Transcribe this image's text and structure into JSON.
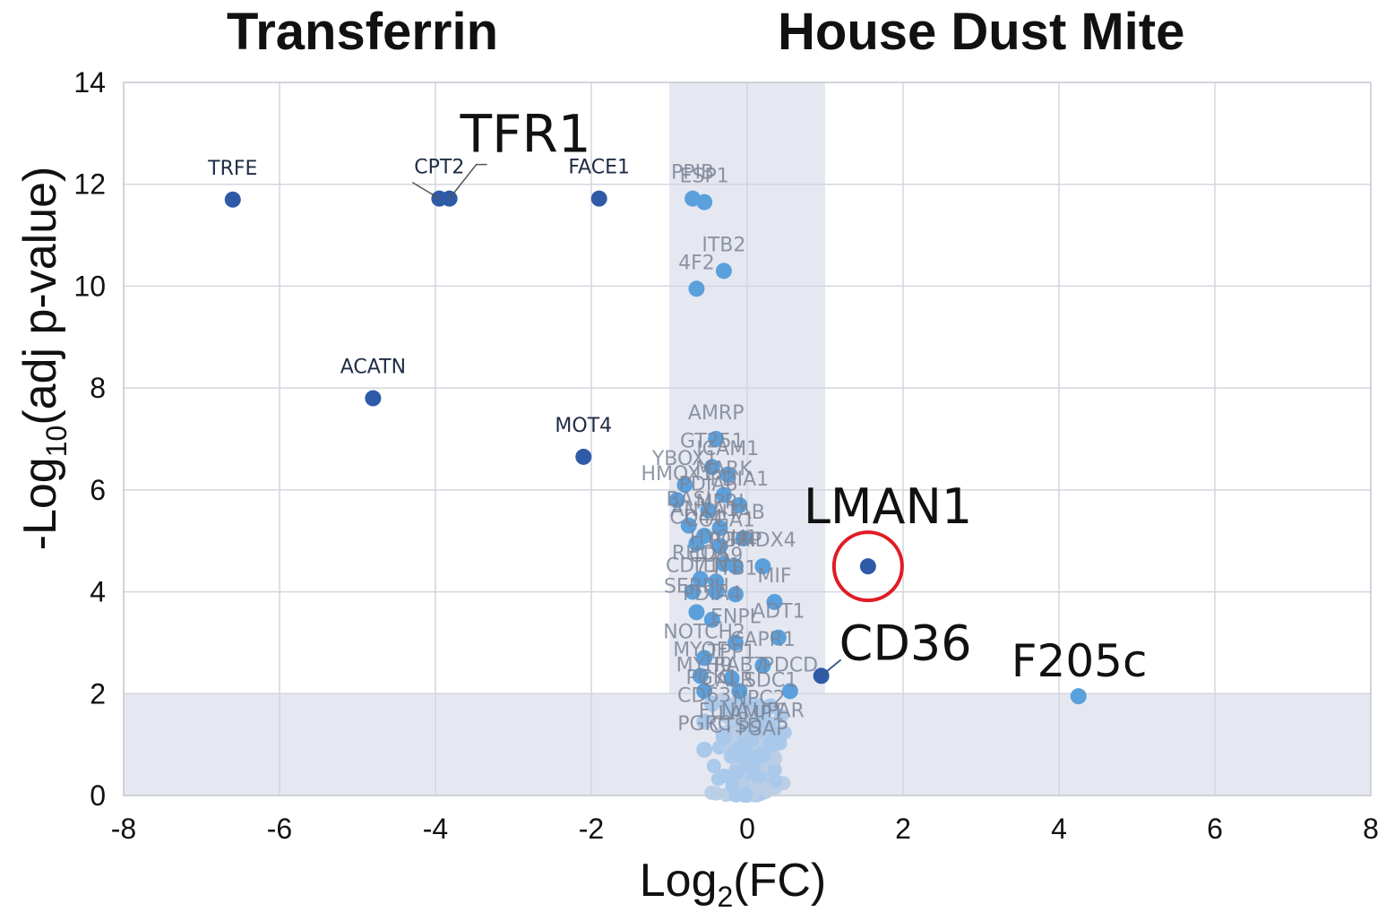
{
  "panel_titles": {
    "left": "Transferrin",
    "right": "House Dust Mite"
  },
  "chart_data": {
    "type": "scatter",
    "title": "",
    "xlabel": "Log2(FC)",
    "ylabel": "-Log10(adj p-value)",
    "xlim": [
      -8,
      8
    ],
    "ylim": [
      0,
      14
    ],
    "x_ticks": [
      -8,
      -6,
      -4,
      -2,
      0,
      2,
      4,
      6,
      8
    ],
    "y_ticks": [
      0,
      2,
      4,
      6,
      8,
      10,
      12,
      14
    ],
    "grid": true,
    "shaded_regions": [
      {
        "axis": "x",
        "from": -1,
        "to": 1,
        "meaning": "fold-change threshold"
      },
      {
        "axis": "y",
        "from": 0,
        "to": 2,
        "meaning": "significance threshold"
      }
    ],
    "colors": {
      "significant": "#2f5aa8",
      "threshold_region": "#5aa0dc",
      "background": "#a9c8ea",
      "highlight_circle": "#e01c24",
      "shade": "#e6e8f1",
      "grid": "#d3d6de"
    },
    "highlighted": "LMAN1",
    "points": [
      {
        "label": "TRFE",
        "x": -6.6,
        "y": 11.7,
        "group": "significant"
      },
      {
        "label": "CPT2",
        "x": -3.95,
        "y": 11.72,
        "group": "significant"
      },
      {
        "label": "TFR1",
        "x": -3.82,
        "y": 11.72,
        "group": "significant"
      },
      {
        "label": "FACE1",
        "x": -1.9,
        "y": 11.72,
        "group": "significant"
      },
      {
        "label": "PPIB",
        "x": -0.7,
        "y": 11.72,
        "group": "threshold"
      },
      {
        "label": "ESP1",
        "x": -0.55,
        "y": 11.65,
        "group": "threshold"
      },
      {
        "label": "ITB2",
        "x": -0.3,
        "y": 10.3,
        "group": "threshold"
      },
      {
        "label": "4F2",
        "x": -0.65,
        "y": 9.95,
        "group": "threshold"
      },
      {
        "label": "ACATN",
        "x": -4.8,
        "y": 7.8,
        "group": "significant"
      },
      {
        "label": "MOT4",
        "x": -2.1,
        "y": 6.65,
        "group": "significant"
      },
      {
        "label": "AMRP",
        "x": -0.4,
        "y": 7.0,
        "group": "threshold"
      },
      {
        "label": "GT251",
        "x": -0.45,
        "y": 6.45,
        "group": "threshold"
      },
      {
        "label": "ICAM1",
        "x": -0.25,
        "y": 6.3,
        "group": "threshold"
      },
      {
        "label": "YBOX1",
        "x": -0.8,
        "y": 6.1,
        "group": "threshold"
      },
      {
        "label": "MARK",
        "x": -0.3,
        "y": 5.9,
        "group": "threshold"
      },
      {
        "label": "HMOX1",
        "x": -0.9,
        "y": 5.8,
        "group": "threshold"
      },
      {
        "label": "PDIA1",
        "x": -0.1,
        "y": 5.7,
        "group": "threshold"
      },
      {
        "label": "PDIA6",
        "x": -0.5,
        "y": 5.6,
        "group": "threshold"
      },
      {
        "label": "BASI",
        "x": -0.75,
        "y": 5.3,
        "group": "threshold"
      },
      {
        "label": "MPRI",
        "x": -0.35,
        "y": 5.25,
        "group": "threshold"
      },
      {
        "label": "ANXA1",
        "x": -0.55,
        "y": 5.1,
        "group": "threshold"
      },
      {
        "label": "ITAB",
        "x": -0.05,
        "y": 5.05,
        "group": "threshold"
      },
      {
        "label": "CD44",
        "x": -0.65,
        "y": 4.95,
        "group": "threshold"
      },
      {
        "label": "COGA1",
        "x": -0.35,
        "y": 4.9,
        "group": "threshold"
      },
      {
        "label": "HYOU1",
        "x": -0.3,
        "y": 4.55,
        "group": "threshold"
      },
      {
        "label": "PGRP",
        "x": -0.15,
        "y": 4.5,
        "group": "threshold"
      },
      {
        "label": "PRDX4",
        "x": 0.2,
        "y": 4.5,
        "group": "threshold"
      },
      {
        "label": "RHOA",
        "x": -0.6,
        "y": 4.25,
        "group": "threshold"
      },
      {
        "label": "CD59",
        "x": -0.4,
        "y": 4.2,
        "group": "threshold"
      },
      {
        "label": "CD71",
        "x": -0.7,
        "y": 4.0,
        "group": "threshold"
      },
      {
        "label": "TLN1",
        "x": -0.4,
        "y": 4.0,
        "group": "threshold"
      },
      {
        "label": "ITB1",
        "x": -0.15,
        "y": 3.95,
        "group": "threshold"
      },
      {
        "label": "MIF",
        "x": 0.35,
        "y": 3.8,
        "group": "threshold"
      },
      {
        "label": "SERPH",
        "x": -0.65,
        "y": 3.6,
        "group": "threshold"
      },
      {
        "label": "PDIA4",
        "x": -0.45,
        "y": 3.45,
        "group": "threshold"
      },
      {
        "label": "ADT1",
        "x": 0.4,
        "y": 3.1,
        "group": "threshold"
      },
      {
        "label": "ENPL",
        "x": -0.15,
        "y": 3.0,
        "group": "threshold"
      },
      {
        "label": "NOTCH2",
        "x": -0.55,
        "y": 2.7,
        "group": "threshold"
      },
      {
        "label": "CAPR1",
        "x": 0.2,
        "y": 2.55,
        "group": "threshold"
      },
      {
        "label": "MYOF",
        "x": -0.6,
        "y": 2.35,
        "group": "threshold"
      },
      {
        "label": "TPP1",
        "x": -0.2,
        "y": 2.3,
        "group": "threshold"
      },
      {
        "label": "MYH9",
        "x": -0.55,
        "y": 2.05,
        "group": "threshold"
      },
      {
        "label": "RAB7",
        "x": -0.1,
        "y": 2.05,
        "group": "threshold"
      },
      {
        "label": "PDCD",
        "x": 0.55,
        "y": 2.05,
        "group": "threshold"
      },
      {
        "label": "CD36",
        "x": 0.95,
        "y": 2.35,
        "group": "significant"
      },
      {
        "label": "LMAN1",
        "x": 1.55,
        "y": 4.5,
        "group": "significant"
      },
      {
        "label": "F205c",
        "x": 4.25,
        "y": 1.95,
        "group": "threshold"
      },
      {
        "label": "PGK1",
        "x": -0.45,
        "y": 1.8,
        "group": "background"
      },
      {
        "label": "CALR",
        "x": -0.25,
        "y": 1.75,
        "group": "background"
      },
      {
        "label": "SDC1",
        "x": 0.3,
        "y": 1.75,
        "group": "background"
      },
      {
        "label": "CD63",
        "x": -0.55,
        "y": 1.45,
        "group": "background"
      },
      {
        "label": "NPC2",
        "x": 0.15,
        "y": 1.4,
        "group": "background"
      },
      {
        "label": "FLNA",
        "x": -0.3,
        "y": 1.15,
        "group": "background"
      },
      {
        "label": "LAMP1",
        "x": 0.05,
        "y": 1.1,
        "group": "background"
      },
      {
        "label": "UPAR",
        "x": 0.4,
        "y": 1.15,
        "group": "background"
      },
      {
        "label": "PGRC",
        "x": -0.55,
        "y": 0.9,
        "group": "background"
      },
      {
        "label": "CTSD",
        "x": -0.15,
        "y": 0.85,
        "group": "background"
      },
      {
        "label": "PSAP",
        "x": 0.2,
        "y": 0.8,
        "group": "background"
      }
    ],
    "cloud_count": 140
  }
}
